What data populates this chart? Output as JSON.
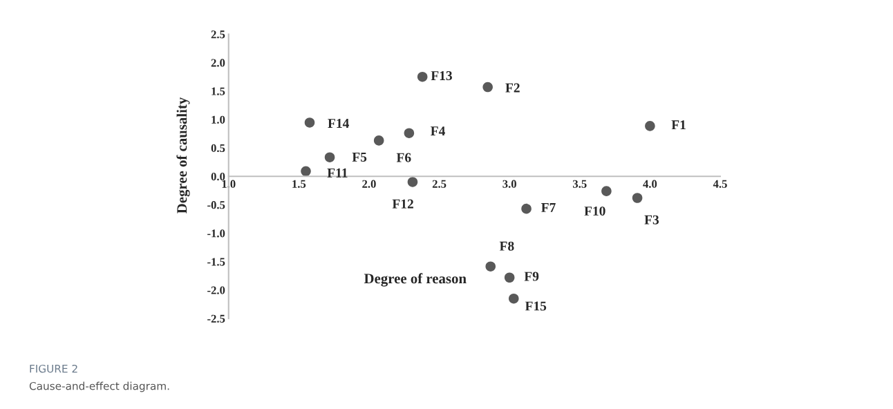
{
  "chart_data": {
    "type": "scatter",
    "xlabel": "Degree of reason",
    "ylabel": "Degree of causality",
    "x": [
      4.0,
      2.845,
      3.91,
      2.285,
      1.72,
      2.07,
      3.12,
      2.865,
      3.0,
      3.69,
      1.55,
      2.31,
      2.38,
      1.577,
      3.03
    ],
    "series": [
      {
        "color": "#595959",
        "values": [
          0.885,
          1.57,
          -0.38,
          0.76,
          0.335,
          0.63,
          -0.57,
          -1.585,
          -1.78,
          -0.26,
          0.09,
          -0.1,
          1.75,
          0.945,
          -2.15
        ]
      }
    ],
    "xlim": [
      1.0,
      4.5
    ],
    "xticks": [
      {
        "value": 1.0,
        "label": "1.0"
      },
      1.5,
      {
        "value": 2.0,
        "label": "2.0"
      },
      2.5,
      {
        "value": 3.0,
        "label": "3.0"
      },
      3.5,
      {
        "value": 4.0,
        "label": "4.0"
      },
      4.5
    ],
    "ylim": [
      -2.5,
      2.5
    ],
    "yticks": [
      -2.5,
      {
        "value": -2.0,
        "label": "-2.0"
      },
      -1.5,
      {
        "value": -1.0,
        "label": "-1.0"
      },
      -0.5,
      {
        "value": 0.0,
        "label": "0.0"
      },
      0.5,
      {
        "value": 1.0,
        "label": "1.0"
      },
      1.5,
      {
        "value": 2.0,
        "label": "2.0"
      },
      2.5
    ],
    "marker": "circle",
    "grid": false,
    "legend": false,
    "annotations": [
      {
        "text": "F1",
        "x": 4.0,
        "y": 0.885
      },
      {
        "text": "F2",
        "x": 2.845,
        "y": 1.57
      },
      {
        "text": "F3",
        "x": 3.91,
        "y": -0.38
      },
      {
        "text": "F4",
        "x": 2.285,
        "y": 0.76
      },
      {
        "text": "F5",
        "x": 1.72,
        "y": 0.335
      },
      {
        "text": "F6",
        "x": 2.07,
        "y": 0.63
      },
      {
        "text": "F7",
        "x": 3.12,
        "y": -0.57
      },
      {
        "text": "F8",
        "x": 2.865,
        "y": -1.585
      },
      {
        "text": "F9",
        "x": 3.0,
        "y": -1.78
      },
      {
        "text": "F10",
        "x": 3.69,
        "y": -0.26
      },
      {
        "text": "F11",
        "x": 1.55,
        "y": 0.09
      },
      {
        "text": "F12",
        "x": 2.31,
        "y": -0.1
      },
      {
        "text": "F13",
        "x": 2.38,
        "y": 1.75
      },
      {
        "text": "F14",
        "x": 1.577,
        "y": 0.945
      },
      {
        "text": "F15",
        "x": 3.03,
        "y": -2.15
      },
      "FIGURE 2",
      "Cause-and-effect diagram."
    ]
  }
}
